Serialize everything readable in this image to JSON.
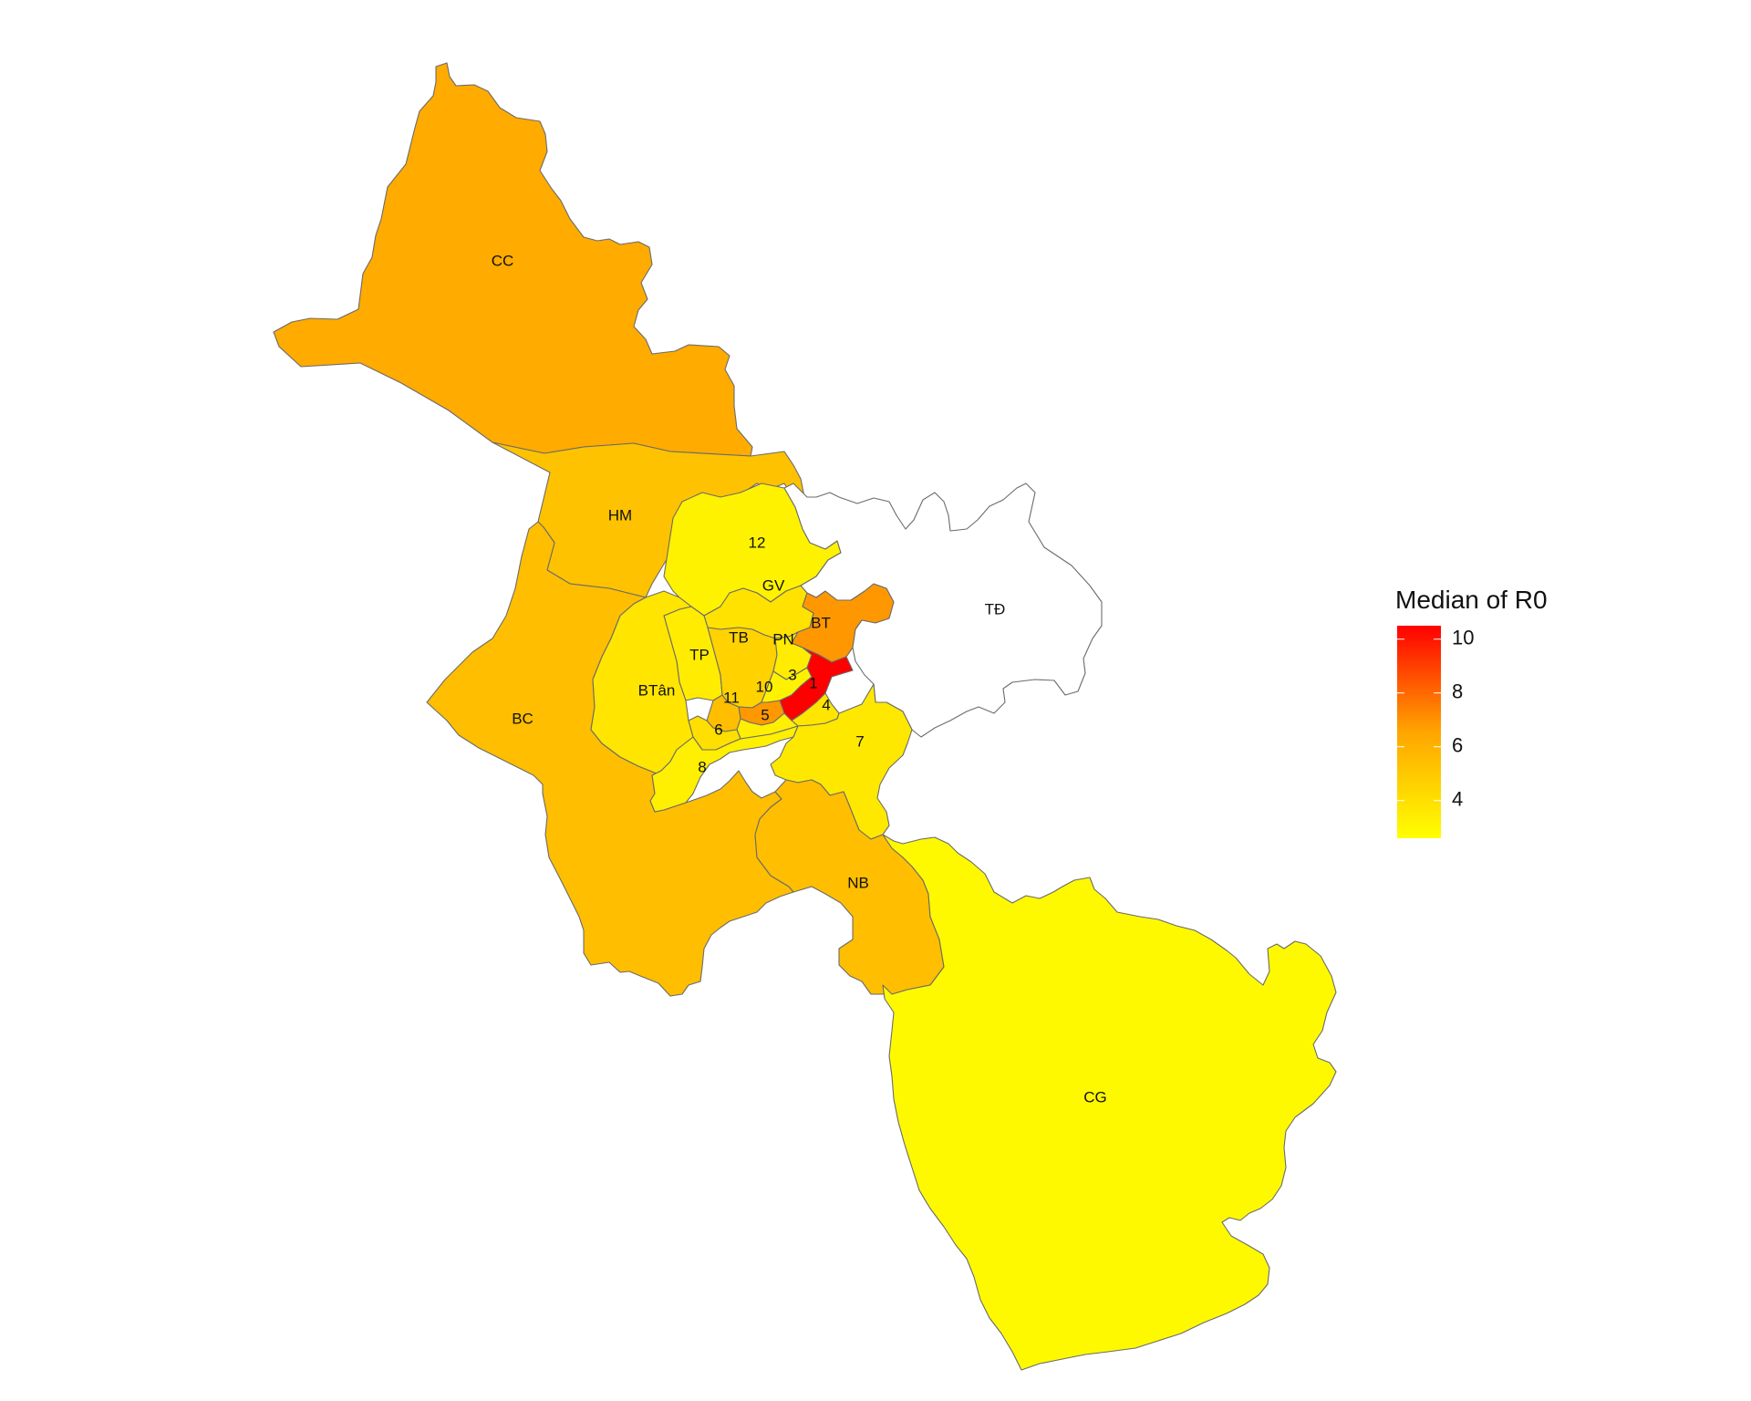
{
  "legend": {
    "title": "Median of R0",
    "ticks": [
      "4",
      "6",
      "8",
      "10"
    ],
    "tick_values": [
      4,
      6,
      8,
      10
    ],
    "range": [
      2.6,
      10.5
    ],
    "colors": {
      "low": "#FFFF00",
      "high": "#FF0000"
    }
  },
  "no_data_fill": "#FFFFFF",
  "districts": [
    {
      "id": "CC",
      "label": "CC",
      "value": 5.2
    },
    {
      "id": "HM",
      "label": "HM",
      "value": 4.5
    },
    {
      "id": "BC",
      "label": "BC",
      "value": 4.6
    },
    {
      "id": "12",
      "label": "12",
      "value": 3.0
    },
    {
      "id": "GV",
      "label": "GV",
      "value": 3.5
    },
    {
      "id": "BT",
      "label": "BT",
      "value": 5.8
    },
    {
      "id": "TD",
      "label": "TĐ",
      "value": null
    },
    {
      "id": "TB",
      "label": "TB",
      "value": 4.0
    },
    {
      "id": "PN",
      "label": "PN",
      "value": 3.2
    },
    {
      "id": "TP",
      "label": "TP",
      "value": 3.2
    },
    {
      "id": "BTan",
      "label": "BTân",
      "value": 3.4
    },
    {
      "id": "11",
      "label": "11",
      "value": 4.6
    },
    {
      "id": "10",
      "label": "10",
      "value": 5.8
    },
    {
      "id": "3",
      "label": "3",
      "value": 3.0
    },
    {
      "id": "1",
      "label": "1",
      "value": 10.5
    },
    {
      "id": "4",
      "label": "4",
      "value": 3.4
    },
    {
      "id": "5",
      "label": "5",
      "value": 3.1
    },
    {
      "id": "6",
      "label": "6",
      "value": 3.6
    },
    {
      "id": "8",
      "label": "8",
      "value": 3.1
    },
    {
      "id": "7",
      "label": "7",
      "value": 3.3
    },
    {
      "id": "NB",
      "label": "NB",
      "value": 4.6
    },
    {
      "id": "CG",
      "label": "CG",
      "value": 2.8
    }
  ]
}
